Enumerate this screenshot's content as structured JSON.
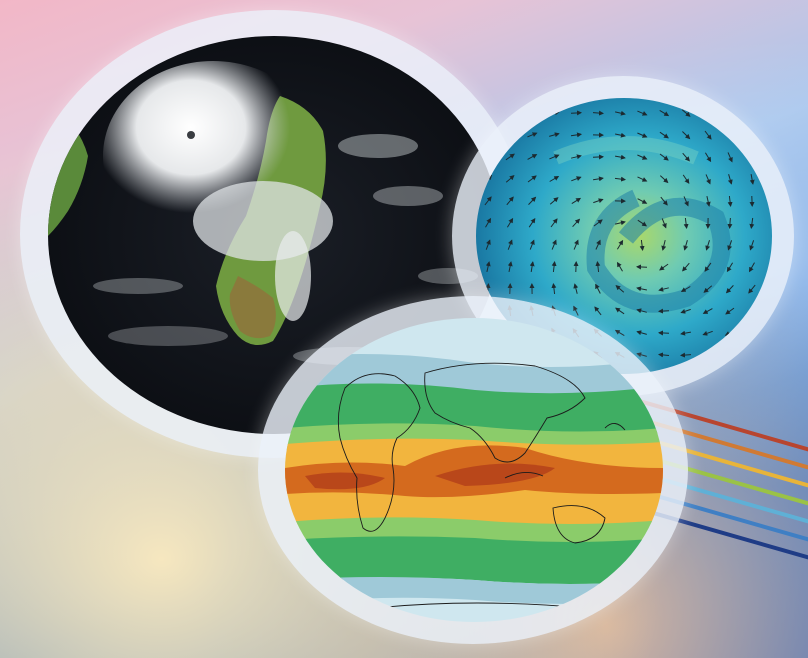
{
  "scene": {
    "image_1": "satellite-view-of-cyclone-over-madagascar",
    "image_2": "wind-vector-field-over-swirling-ocean",
    "image_3": "global-climate-zone-map"
  },
  "palette": {
    "sky_top": "#2a63bf",
    "sky_pink": "#f2b7c7",
    "sunset": "#ffd9a8",
    "ring": "#ecf2fa",
    "stripes": [
      "#b8452f",
      "#d07a34",
      "#e8b43a",
      "#9ac246",
      "#5fb0d6",
      "#3f7fc4",
      "#1f3c86"
    ]
  }
}
